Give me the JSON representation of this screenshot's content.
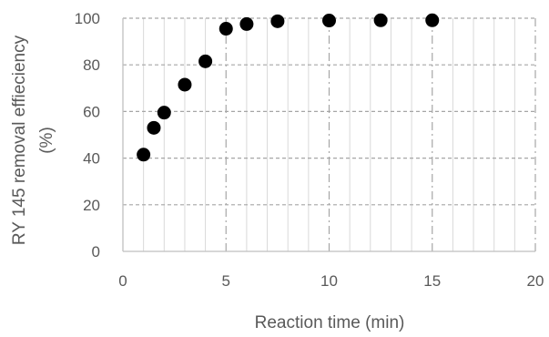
{
  "chart_data": {
    "type": "scatter",
    "xlabel": "Reaction time (min)",
    "ylabel_lines": [
      "RY 145 removal effieciency",
      "(%)"
    ],
    "xlim": [
      0,
      20
    ],
    "ylim": [
      0,
      100
    ],
    "x_ticks": [
      0,
      5,
      10,
      15,
      20
    ],
    "y_ticks": [
      0,
      20,
      40,
      60,
      80,
      100
    ],
    "grid": true,
    "marker_color": "#000000",
    "series": [
      {
        "points": [
          {
            "x": 1,
            "y": 41.5
          },
          {
            "x": 1.5,
            "y": 53
          },
          {
            "x": 2,
            "y": 59.5
          },
          {
            "x": 3,
            "y": 71.5
          },
          {
            "x": 4,
            "y": 81.5
          },
          {
            "x": 5,
            "y": 95.5
          },
          {
            "x": 6,
            "y": 97.5
          },
          {
            "x": 7.5,
            "y": 98.7
          },
          {
            "x": 10,
            "y": 99
          },
          {
            "x": 12.5,
            "y": 99.1
          },
          {
            "x": 15,
            "y": 99.1
          }
        ]
      }
    ]
  }
}
